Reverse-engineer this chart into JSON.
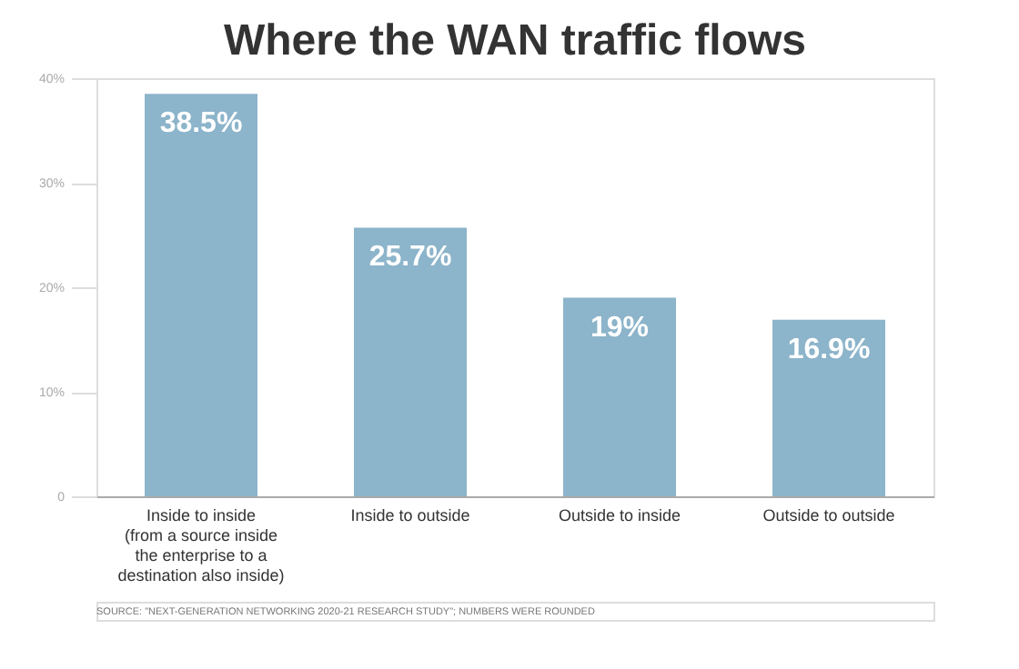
{
  "chart_data": {
    "type": "bar",
    "title": "Where the WAN traffic flows",
    "categories": [
      "Inside to inside\n(from a source inside\nthe enterprise to a\ndestination also inside)",
      "Inside to outside",
      "Outside to inside",
      "Outside to outside"
    ],
    "values": [
      38.5,
      25.7,
      19,
      16.9
    ],
    "value_labels": [
      "38.5%",
      "25.7%",
      "19%",
      "16.9%"
    ],
    "color": "#8cb4ca",
    "ylim": [
      0,
      40
    ],
    "yticks": [
      0,
      {
        "value": 10,
        "label": "10%"
      },
      {
        "value": 20,
        "label": "20%"
      },
      {
        "value": 30,
        "label": "30%"
      },
      {
        "value": 40,
        "label": "40%"
      }
    ],
    "grid": false,
    "annotations": [
      "SOURCE: \"NEXT-GENERATION NETWORKING 2020-21 RESEARCH STUDY\"; NUMBERS WERE ROUNDED"
    ]
  }
}
